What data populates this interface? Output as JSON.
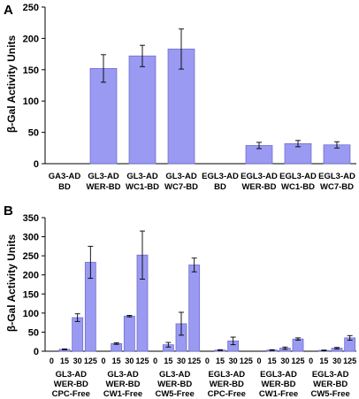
{
  "chart_data": [
    {
      "type": "bar",
      "panel_label": "A",
      "ylabel": "β-Gal Activity Units",
      "ylim": [
        0,
        250
      ],
      "yticks": [
        0,
        50,
        100,
        150,
        200,
        250
      ],
      "categories": [
        [
          "GA3-AD",
          "BD"
        ],
        [
          "GL3-AD",
          "WER-BD"
        ],
        [
          "GL3-AD",
          "WC1-BD"
        ],
        [
          "GL3-AD",
          "WC7-BD"
        ],
        [
          "EGL3-AD",
          "BD"
        ],
        [
          "EGL3-AD",
          "WER-BD"
        ],
        [
          "EGL3-AD",
          "WC1-BD"
        ],
        [
          "EGL3-AD",
          "WC7-BD"
        ]
      ],
      "values": [
        0,
        152,
        172,
        183,
        0,
        29,
        32,
        30
      ],
      "errors": [
        0,
        22,
        17,
        32,
        0,
        5,
        5,
        5
      ],
      "grid": false
    },
    {
      "type": "bar",
      "panel_label": "B",
      "ylabel": "β-Gal Activity Units",
      "ylim": [
        0,
        350
      ],
      "yticks": [
        0,
        50,
        100,
        150,
        200,
        250,
        300,
        350
      ],
      "group_tick_labels": [
        "0",
        "15",
        "30",
        "125"
      ],
      "groups": [
        {
          "label": [
            "GL3-AD",
            "WER-BD",
            "CPC-Free"
          ],
          "values": [
            0,
            5,
            88,
            233
          ],
          "errors": [
            0,
            1,
            10,
            42
          ]
        },
        {
          "label": [
            "GL3-AD",
            "WER-BD",
            "CW1-Free"
          ],
          "values": [
            0,
            20,
            92,
            252
          ],
          "errors": [
            0,
            2,
            2,
            63
          ]
        },
        {
          "label": [
            "GL3-AD",
            "WER-BD",
            "CW5-Free"
          ],
          "values": [
            0,
            17,
            72,
            226
          ],
          "errors": [
            0,
            6,
            30,
            18
          ]
        },
        {
          "label": [
            "EGL3-AD",
            "WER-BD",
            "CPC-Free"
          ],
          "values": [
            0,
            3,
            27,
            0
          ],
          "errors": [
            0,
            1,
            10,
            0
          ]
        },
        {
          "label": [
            "EGL3-AD",
            "WER-BD",
            "CW1-Free"
          ],
          "values": [
            0,
            3,
            8,
            32
          ],
          "errors": [
            0,
            1,
            3,
            3
          ]
        },
        {
          "label": [
            "EGL3-AD",
            "WER-BD",
            "CW5-Free"
          ],
          "values": [
            0,
            2,
            8,
            35
          ],
          "errors": [
            0,
            1,
            2,
            6
          ]
        }
      ],
      "grid": false
    }
  ]
}
